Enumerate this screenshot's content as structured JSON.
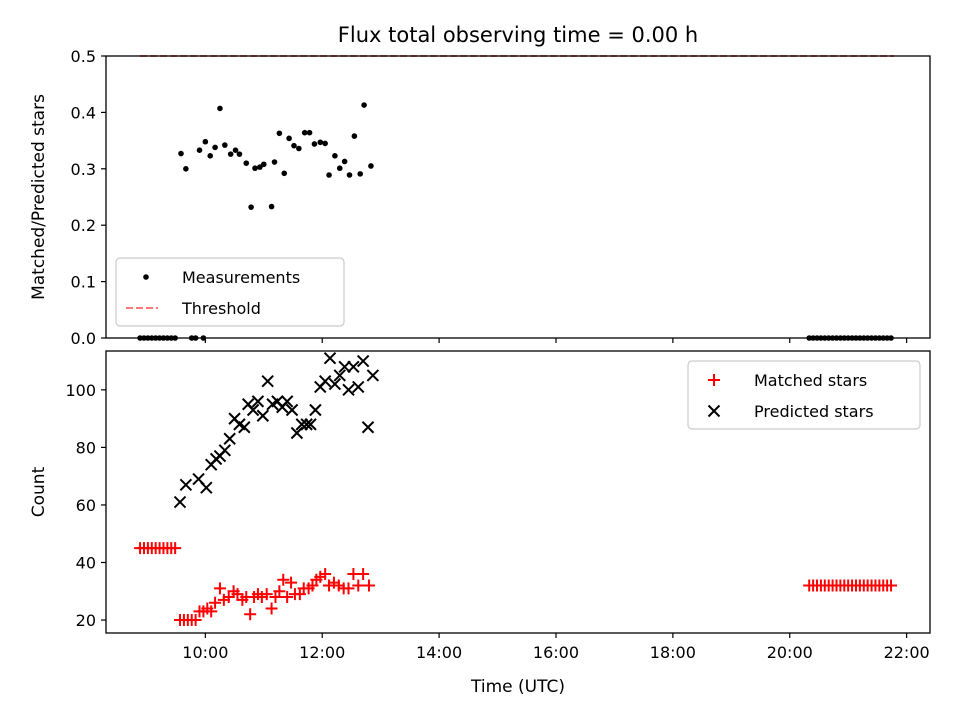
{
  "chart_data": [
    {
      "type": "scatter",
      "title": "Flux total observing time = 0.00 h",
      "xlabel": "",
      "ylabel": "Matched/Predicted stars",
      "ylim": [
        0,
        0.5
      ],
      "xlim": [
        "08:18",
        "22:24"
      ],
      "yticks": [
        "0.0",
        "0.1",
        "0.2",
        "0.3",
        "0.4",
        "0.5"
      ],
      "legend_position": "lower-left",
      "series": [
        {
          "name": "Measurements",
          "kind": "points",
          "color": "#000000",
          "points": [
            [
              "08:53",
              0
            ],
            [
              "08:57",
              0
            ],
            [
              "09:01",
              0
            ],
            [
              "09:05",
              0
            ],
            [
              "09:09",
              0
            ],
            [
              "09:13",
              0
            ],
            [
              "09:17",
              0
            ],
            [
              "09:21",
              0
            ],
            [
              "09:25",
              0
            ],
            [
              "09:29",
              0
            ],
            [
              "09:46",
              0
            ],
            [
              "09:50",
              0
            ],
            [
              "09:58",
              0
            ],
            [
              "09:35",
              0.327
            ],
            [
              "09:40",
              0.3
            ],
            [
              "09:54",
              0.333
            ],
            [
              "10:00",
              0.348
            ],
            [
              "10:05",
              0.323
            ],
            [
              "10:10",
              0.338
            ],
            [
              "10:15",
              0.407
            ],
            [
              "10:20",
              0.342
            ],
            [
              "10:26",
              0.326
            ],
            [
              "10:31",
              0.333
            ],
            [
              "10:35",
              0.326
            ],
            [
              "10:42",
              0.31
            ],
            [
              "10:47",
              0.232
            ],
            [
              "10:51",
              0.301
            ],
            [
              "10:56",
              0.303
            ],
            [
              "11:00",
              0.308
            ],
            [
              "11:08",
              0.233
            ],
            [
              "11:11",
              0.312
            ],
            [
              "11:16",
              0.363
            ],
            [
              "11:21",
              0.292
            ],
            [
              "11:26",
              0.354
            ],
            [
              "11:31",
              0.341
            ],
            [
              "11:36",
              0.336
            ],
            [
              "11:42",
              0.364
            ],
            [
              "11:47",
              0.364
            ],
            [
              "11:52",
              0.344
            ],
            [
              "11:58",
              0.347
            ],
            [
              "12:03",
              0.345
            ],
            [
              "12:07",
              0.289
            ],
            [
              "12:13",
              0.323
            ],
            [
              "12:18",
              0.301
            ],
            [
              "12:23",
              0.313
            ],
            [
              "12:28",
              0.289
            ],
            [
              "12:33",
              0.358
            ],
            [
              "12:39",
              0.291
            ],
            [
              "12:43",
              0.413
            ],
            [
              "12:50",
              0.305
            ],
            [
              "20:20",
              0
            ],
            [
              "20:24",
              0
            ],
            [
              "20:28",
              0
            ],
            [
              "20:32",
              0
            ],
            [
              "20:36",
              0
            ],
            [
              "20:40",
              0
            ],
            [
              "20:44",
              0
            ],
            [
              "20:48",
              0
            ],
            [
              "20:52",
              0
            ],
            [
              "20:56",
              0
            ],
            [
              "21:00",
              0
            ],
            [
              "21:04",
              0
            ],
            [
              "21:08",
              0
            ],
            [
              "21:12",
              0
            ],
            [
              "21:16",
              0
            ],
            [
              "21:20",
              0
            ],
            [
              "21:24",
              0
            ],
            [
              "21:28",
              0
            ],
            [
              "21:32",
              0
            ],
            [
              "21:36",
              0
            ],
            [
              "21:40",
              0
            ],
            [
              "21:44",
              0
            ]
          ]
        },
        {
          "name": "Threshold",
          "kind": "dashed-line",
          "color": "#ff7777",
          "points": [
            [
              "08:53",
              0.5
            ],
            [
              "21:47",
              0.5
            ]
          ]
        }
      ]
    },
    {
      "type": "scatter",
      "title": "",
      "xlabel": "Time (UTC)",
      "ylabel": "Count",
      "ylim": [
        15.5,
        113.5
      ],
      "xlim": [
        "08:18",
        "22:24"
      ],
      "xticks": [
        "10:00",
        "12:00",
        "14:00",
        "16:00",
        "18:00",
        "20:00",
        "22:00"
      ],
      "yticks": [
        "20",
        "40",
        "60",
        "80",
        "100"
      ],
      "legend_position": "top-right",
      "series": [
        {
          "name": "Matched stars",
          "marker": "plus",
          "color": "#ff0000",
          "points": [
            [
              "08:53",
              45
            ],
            [
              "08:57",
              45
            ],
            [
              "09:01",
              45
            ],
            [
              "09:05",
              45
            ],
            [
              "09:09",
              45
            ],
            [
              "09:13",
              45
            ],
            [
              "09:17",
              45
            ],
            [
              "09:21",
              45
            ],
            [
              "09:25",
              45
            ],
            [
              "09:29",
              45
            ],
            [
              "09:34",
              20
            ],
            [
              "09:38",
              20
            ],
            [
              "09:42",
              20
            ],
            [
              "09:46",
              20
            ],
            [
              "09:50",
              20
            ],
            [
              "09:54",
              23
            ],
            [
              "09:58",
              23
            ],
            [
              "10:02",
              24
            ],
            [
              "10:06",
              23
            ],
            [
              "10:10",
              26
            ],
            [
              "10:15",
              31
            ],
            [
              "10:19",
              27
            ],
            [
              "10:24",
              28
            ],
            [
              "10:29",
              30
            ],
            [
              "10:33",
              29
            ],
            [
              "10:38",
              27
            ],
            [
              "10:42",
              28
            ],
            [
              "10:46",
              22
            ],
            [
              "10:50",
              28
            ],
            [
              "10:54",
              29
            ],
            [
              "10:58",
              28
            ],
            [
              "11:03",
              29
            ],
            [
              "11:08",
              24
            ],
            [
              "11:12",
              28
            ],
            [
              "11:16",
              30
            ],
            [
              "11:20",
              34
            ],
            [
              "11:24",
              28
            ],
            [
              "11:28",
              33
            ],
            [
              "11:32",
              29
            ],
            [
              "11:37",
              29
            ],
            [
              "11:41",
              31
            ],
            [
              "11:46",
              31
            ],
            [
              "11:50",
              32
            ],
            [
              "11:54",
              34
            ],
            [
              "11:58",
              35
            ],
            [
              "12:03",
              36
            ],
            [
              "12:07",
              32
            ],
            [
              "12:12",
              33
            ],
            [
              "12:17",
              32
            ],
            [
              "12:22",
              31
            ],
            [
              "12:27",
              31
            ],
            [
              "12:32",
              36
            ],
            [
              "12:37",
              32
            ],
            [
              "12:42",
              36
            ],
            [
              "12:48",
              32
            ],
            [
              "20:20",
              32
            ],
            [
              "20:24",
              32
            ],
            [
              "20:28",
              32
            ],
            [
              "20:32",
              32
            ],
            [
              "20:36",
              32
            ],
            [
              "20:40",
              32
            ],
            [
              "20:44",
              32
            ],
            [
              "20:48",
              32
            ],
            [
              "20:52",
              32
            ],
            [
              "20:56",
              32
            ],
            [
              "21:00",
              32
            ],
            [
              "21:04",
              32
            ],
            [
              "21:08",
              32
            ],
            [
              "21:12",
              32
            ],
            [
              "21:16",
              32
            ],
            [
              "21:20",
              32
            ],
            [
              "21:24",
              32
            ],
            [
              "21:28",
              32
            ],
            [
              "21:32",
              32
            ],
            [
              "21:36",
              32
            ],
            [
              "21:40",
              32
            ],
            [
              "21:44",
              32
            ]
          ]
        },
        {
          "name": "Predicted stars",
          "marker": "x",
          "color": "#000000",
          "points": [
            [
              "09:34",
              61
            ],
            [
              "09:40",
              67
            ],
            [
              "09:53",
              69
            ],
            [
              "10:01",
              66
            ],
            [
              "10:06",
              74
            ],
            [
              "10:11",
              76
            ],
            [
              "10:15",
              77
            ],
            [
              "10:20",
              79
            ],
            [
              "10:25",
              83
            ],
            [
              "10:30",
              90
            ],
            [
              "10:35",
              88
            ],
            [
              "10:40",
              87
            ],
            [
              "10:44",
              95
            ],
            [
              "10:49",
              93
            ],
            [
              "10:54",
              96
            ],
            [
              "10:59",
              91
            ],
            [
              "11:04",
              103
            ],
            [
              "11:09",
              95
            ],
            [
              "11:14",
              96
            ],
            [
              "11:19",
              94
            ],
            [
              "11:24",
              96
            ],
            [
              "11:29",
              93
            ],
            [
              "11:34",
              85
            ],
            [
              "11:39",
              88
            ],
            [
              "11:44",
              88
            ],
            [
              "11:48",
              88
            ],
            [
              "11:53",
              93
            ],
            [
              "11:58",
              101
            ],
            [
              "12:03",
              103
            ],
            [
              "12:08",
              111
            ],
            [
              "12:13",
              102
            ],
            [
              "12:18",
              105
            ],
            [
              "12:23",
              108
            ],
            [
              "12:27",
              100
            ],
            [
              "12:32",
              108
            ],
            [
              "12:37",
              101
            ],
            [
              "12:42",
              110
            ],
            [
              "12:47",
              87
            ],
            [
              "12:52",
              105
            ]
          ]
        }
      ]
    }
  ]
}
